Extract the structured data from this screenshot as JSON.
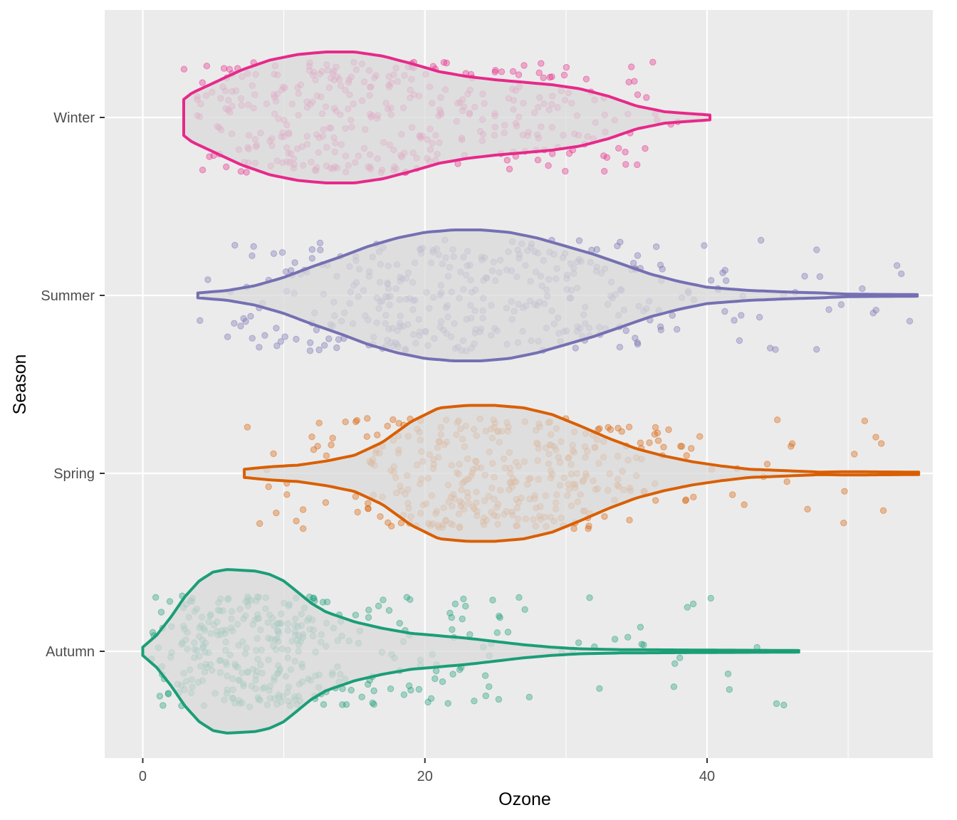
{
  "chart_data": {
    "type": "violin",
    "xlabel": "Ozone",
    "ylabel": "Season",
    "xlim": [
      -2.7,
      56.0
    ],
    "x_ticks": [
      0,
      20,
      40
    ],
    "x_tick_labels": [
      "0",
      "20",
      "40"
    ],
    "x_minor_ticks": [
      10,
      30,
      50
    ],
    "categories": [
      "Winter",
      "Summer",
      "Spring",
      "Autumn"
    ],
    "grid": true,
    "background": "#EBEBEB",
    "fill_color": "#D9D9D9",
    "jitter_points": true,
    "point_alpha": 0.35,
    "series": [
      {
        "category": "Winter",
        "color": "#E7298A",
        "range": [
          2.9,
          40.2
        ],
        "density_profile": [
          [
            2.9,
            0.22
          ],
          [
            3.5,
            0.3
          ],
          [
            5,
            0.42
          ],
          [
            7,
            0.58
          ],
          [
            9,
            0.7
          ],
          [
            11,
            0.77
          ],
          [
            13,
            0.8
          ],
          [
            15,
            0.8
          ],
          [
            17,
            0.75
          ],
          [
            19,
            0.66
          ],
          [
            21,
            0.56
          ],
          [
            23,
            0.5
          ],
          [
            25,
            0.46
          ],
          [
            27,
            0.43
          ],
          [
            29,
            0.4
          ],
          [
            31,
            0.35
          ],
          [
            33,
            0.26
          ],
          [
            35,
            0.14
          ],
          [
            37,
            0.07
          ],
          [
            38.5,
            0.05
          ],
          [
            40.2,
            0.03
          ]
        ]
      },
      {
        "category": "Summer",
        "color": "#7570B3",
        "range": [
          3.9,
          54.9
        ],
        "density_profile": [
          [
            3.9,
            0.03
          ],
          [
            6,
            0.06
          ],
          [
            8,
            0.12
          ],
          [
            10,
            0.22
          ],
          [
            12,
            0.35
          ],
          [
            14,
            0.47
          ],
          [
            16,
            0.6
          ],
          [
            18,
            0.7
          ],
          [
            20,
            0.77
          ],
          [
            22,
            0.8
          ],
          [
            24,
            0.8
          ],
          [
            26,
            0.77
          ],
          [
            28,
            0.7
          ],
          [
            30,
            0.6
          ],
          [
            32,
            0.5
          ],
          [
            34,
            0.38
          ],
          [
            36,
            0.26
          ],
          [
            38,
            0.17
          ],
          [
            40,
            0.1
          ],
          [
            43,
            0.06
          ],
          [
            46,
            0.04
          ],
          [
            48,
            0.03
          ],
          [
            50,
            0.015
          ],
          [
            54.9,
            0.01
          ]
        ]
      },
      {
        "category": "Spring",
        "color": "#D95F02",
        "range": [
          7.2,
          55.0
        ],
        "density_profile": [
          [
            7.2,
            0.05
          ],
          [
            9,
            0.08
          ],
          [
            11,
            0.1
          ],
          [
            13,
            0.15
          ],
          [
            15,
            0.22
          ],
          [
            17,
            0.38
          ],
          [
            19,
            0.63
          ],
          [
            21,
            0.8
          ],
          [
            23,
            0.83
          ],
          [
            25,
            0.83
          ],
          [
            27,
            0.8
          ],
          [
            29,
            0.72
          ],
          [
            31,
            0.58
          ],
          [
            33,
            0.43
          ],
          [
            35,
            0.3
          ],
          [
            37,
            0.21
          ],
          [
            39,
            0.14
          ],
          [
            41,
            0.09
          ],
          [
            43,
            0.05
          ],
          [
            46,
            0.03
          ],
          [
            48,
            0.015
          ],
          [
            50,
            0.02
          ],
          [
            55.0,
            0.015
          ]
        ]
      },
      {
        "category": "Autumn",
        "color": "#1B9E77",
        "range": [
          0.0,
          46.5
        ],
        "density_profile": [
          [
            0,
            0.05
          ],
          [
            1,
            0.2
          ],
          [
            2,
            0.42
          ],
          [
            3,
            0.67
          ],
          [
            4,
            0.86
          ],
          [
            5,
            0.97
          ],
          [
            6,
            1.0
          ],
          [
            7,
            0.99
          ],
          [
            8,
            0.98
          ],
          [
            9,
            0.94
          ],
          [
            10,
            0.86
          ],
          [
            11,
            0.72
          ],
          [
            12,
            0.58
          ],
          [
            13,
            0.48
          ],
          [
            14,
            0.42
          ],
          [
            15,
            0.36
          ],
          [
            17,
            0.28
          ],
          [
            19,
            0.22
          ],
          [
            21,
            0.19
          ],
          [
            23,
            0.16
          ],
          [
            25,
            0.12
          ],
          [
            27,
            0.08
          ],
          [
            29,
            0.05
          ],
          [
            31,
            0.03
          ],
          [
            34,
            0.02
          ],
          [
            40,
            0.015
          ],
          [
            46.5,
            0.01
          ]
        ]
      }
    ]
  }
}
